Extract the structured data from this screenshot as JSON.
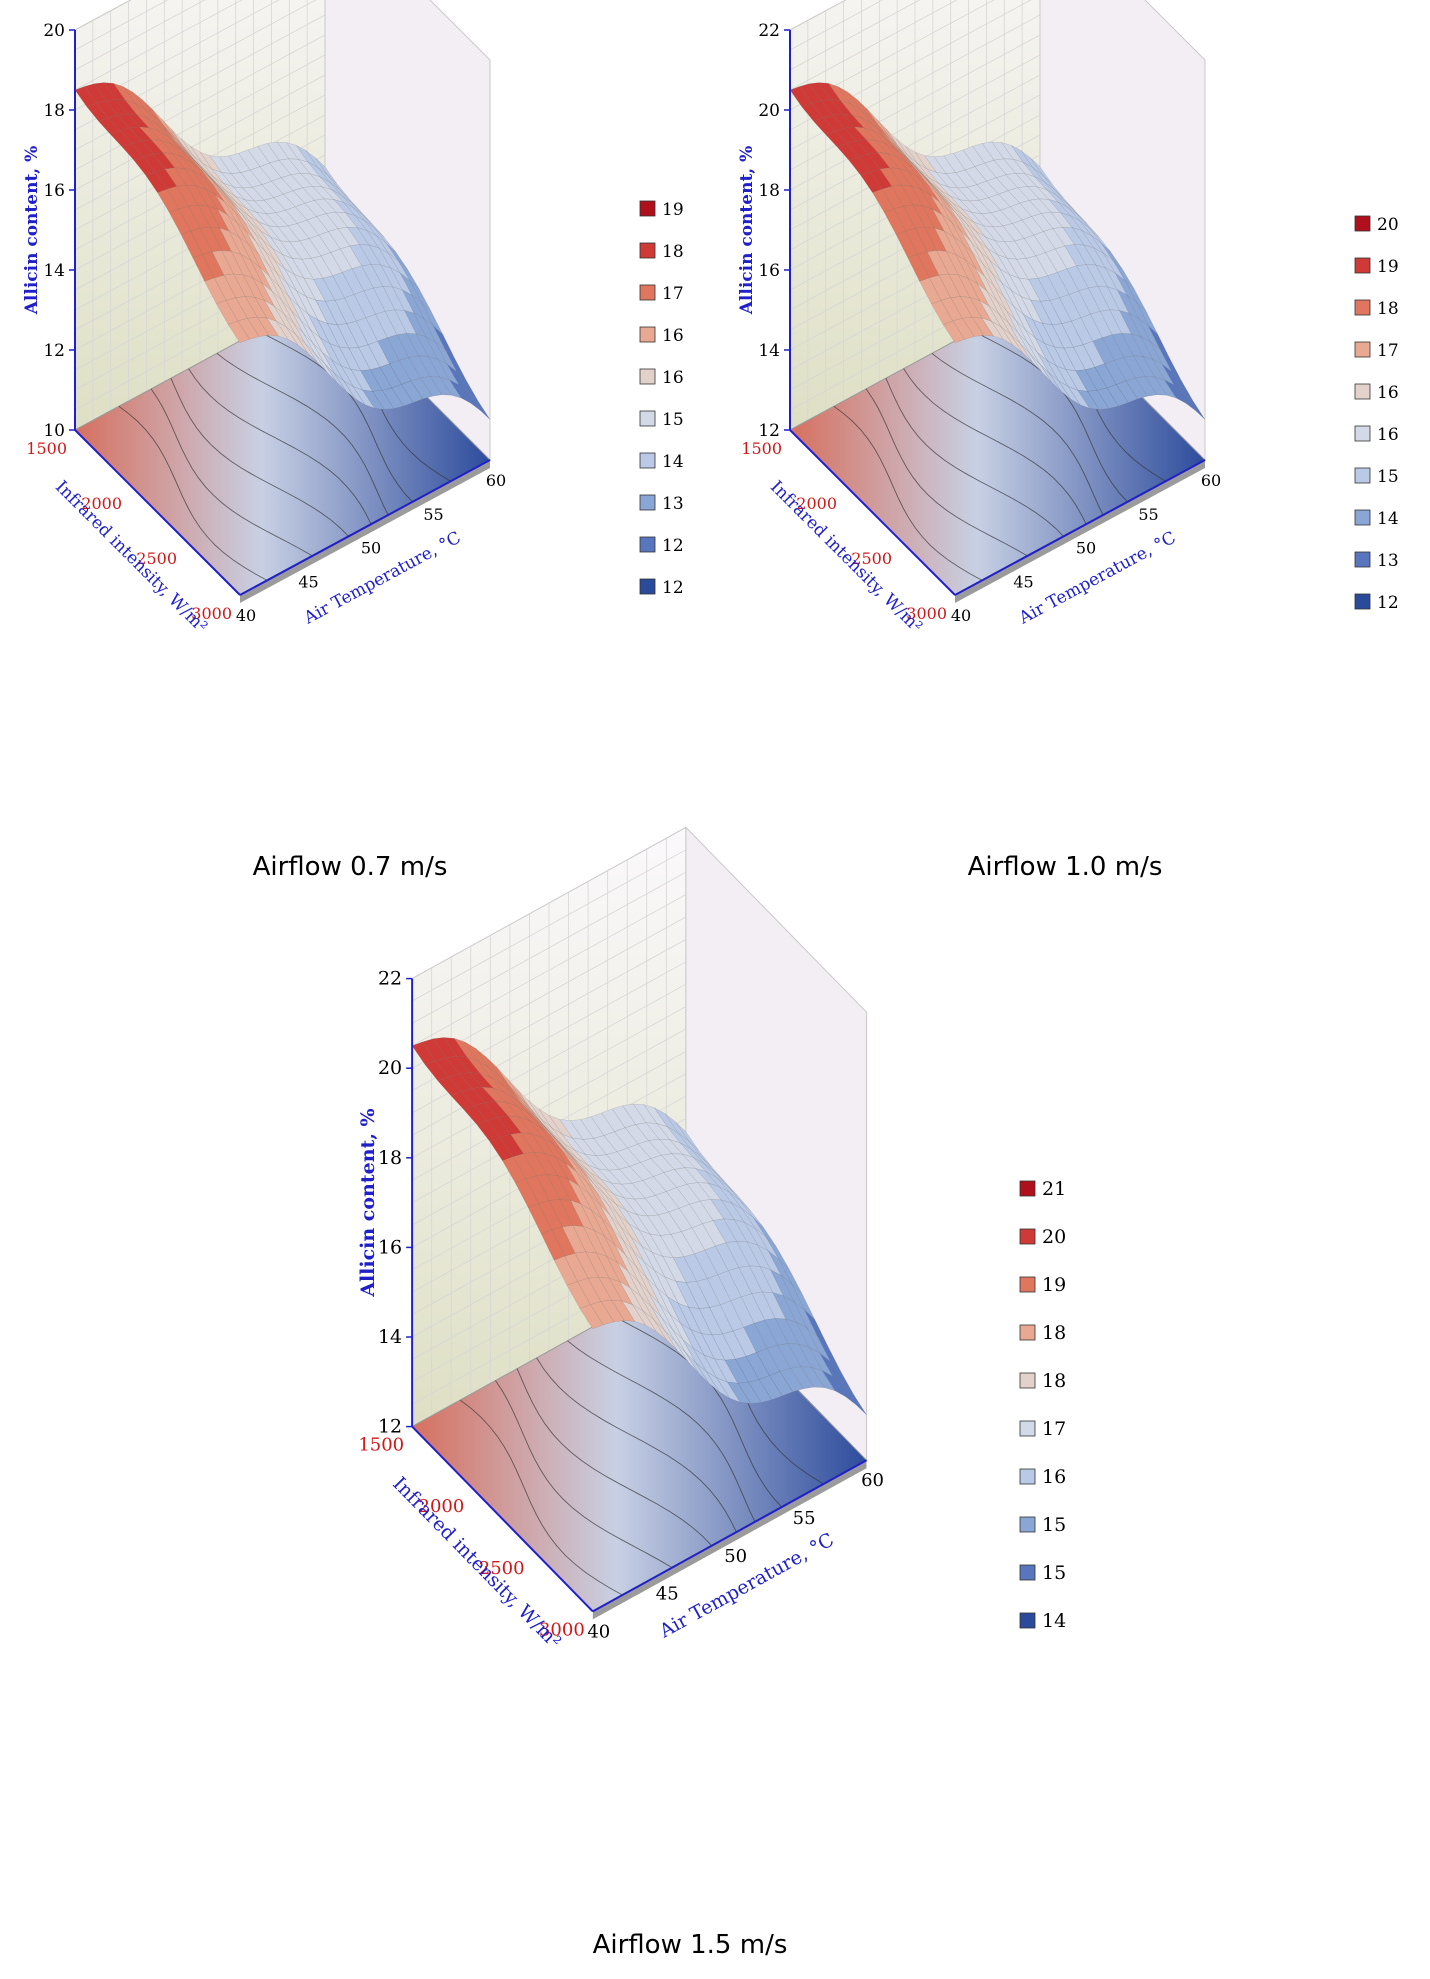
{
  "chart_data": [
    {
      "type": "surface",
      "caption": "Airflow 0.7 m/s",
      "z_axis": {
        "label": "Allicin content, %",
        "ticks": [
          "10",
          "12",
          "14",
          "16",
          "18",
          "20"
        ],
        "range": [
          10,
          20
        ]
      },
      "x_axis": {
        "label": "Air Temperature, °C",
        "ticks": [
          "40",
          "45",
          "50",
          "55",
          "60"
        ],
        "range": [
          40,
          60
        ]
      },
      "y_axis": {
        "label": "Infrared intensity, W/m²",
        "ticks": [
          "1500",
          "2000",
          "2500",
          "3000"
        ],
        "range": [
          1500,
          3000
        ]
      },
      "legend": {
        "placement": "right",
        "entries": [
          {
            "label": "19",
            "color": "#b00f1c"
          },
          {
            "label": "18",
            "color": "#cf3a36"
          },
          {
            "label": "17",
            "color": "#e0765d"
          },
          {
            "label": "16",
            "color": "#e9a892"
          },
          {
            "label": "16",
            "color": "#e3d2cc"
          },
          {
            "label": "15",
            "color": "#d3d9e6"
          },
          {
            "label": "14",
            "color": "#b9c9e6"
          },
          {
            "label": "13",
            "color": "#8aa6d5"
          },
          {
            "label": "12",
            "color": "#5876bd"
          },
          {
            "label": "12",
            "color": "#2a4a9b"
          }
        ]
      }
    },
    {
      "type": "surface",
      "caption": "Airflow 1.0 m/s",
      "z_axis": {
        "label": "Allicin content, %",
        "ticks": [
          "12",
          "14",
          "16",
          "18",
          "20",
          "22"
        ],
        "range": [
          12,
          22
        ]
      },
      "x_axis": {
        "label": "Air Temperature, °C",
        "ticks": [
          "40",
          "45",
          "50",
          "55",
          "60"
        ],
        "range": [
          40,
          60
        ]
      },
      "y_axis": {
        "label": "Infrared intensity, W/m²",
        "ticks": [
          "1500",
          "2000",
          "2500",
          "3000"
        ],
        "range": [
          1500,
          3000
        ]
      },
      "legend": {
        "placement": "right",
        "entries": [
          {
            "label": "20",
            "color": "#b00f1c"
          },
          {
            "label": "19",
            "color": "#cf3a36"
          },
          {
            "label": "18",
            "color": "#e0765d"
          },
          {
            "label": "17",
            "color": "#e9a892"
          },
          {
            "label": "16",
            "color": "#e3d2cc"
          },
          {
            "label": "16",
            "color": "#d3d9e6"
          },
          {
            "label": "15",
            "color": "#b9c9e6"
          },
          {
            "label": "14",
            "color": "#8aa6d5"
          },
          {
            "label": "13",
            "color": "#5876bd"
          },
          {
            "label": "12",
            "color": "#2a4a9b"
          }
        ]
      }
    },
    {
      "type": "surface",
      "caption": "Airflow 1.5 m/s",
      "z_axis": {
        "label": "Allicin content, %",
        "ticks": [
          "12",
          "14",
          "16",
          "18",
          "20",
          "22"
        ],
        "range": [
          12,
          22
        ]
      },
      "x_axis": {
        "label": "Air Temperature, °C",
        "ticks": [
          "40",
          "45",
          "50",
          "55",
          "60"
        ],
        "range": [
          40,
          60
        ]
      },
      "y_axis": {
        "label": "Infrared intensity, W/m²",
        "ticks": [
          "1500",
          "2000",
          "2500",
          "3000"
        ],
        "range": [
          1500,
          3000
        ]
      },
      "legend": {
        "placement": "right",
        "entries": [
          {
            "label": "21",
            "color": "#b00f1c"
          },
          {
            "label": "20",
            "color": "#cf3a36"
          },
          {
            "label": "19",
            "color": "#e0765d"
          },
          {
            "label": "18",
            "color": "#e9a892"
          },
          {
            "label": "18",
            "color": "#e3d2cc"
          },
          {
            "label": "17",
            "color": "#d3d9e6"
          },
          {
            "label": "16",
            "color": "#b9c9e6"
          },
          {
            "label": "15",
            "color": "#8aa6d5"
          },
          {
            "label": "15",
            "color": "#5876bd"
          },
          {
            "label": "14",
            "color": "#2a4a9b"
          }
        ]
      }
    }
  ]
}
